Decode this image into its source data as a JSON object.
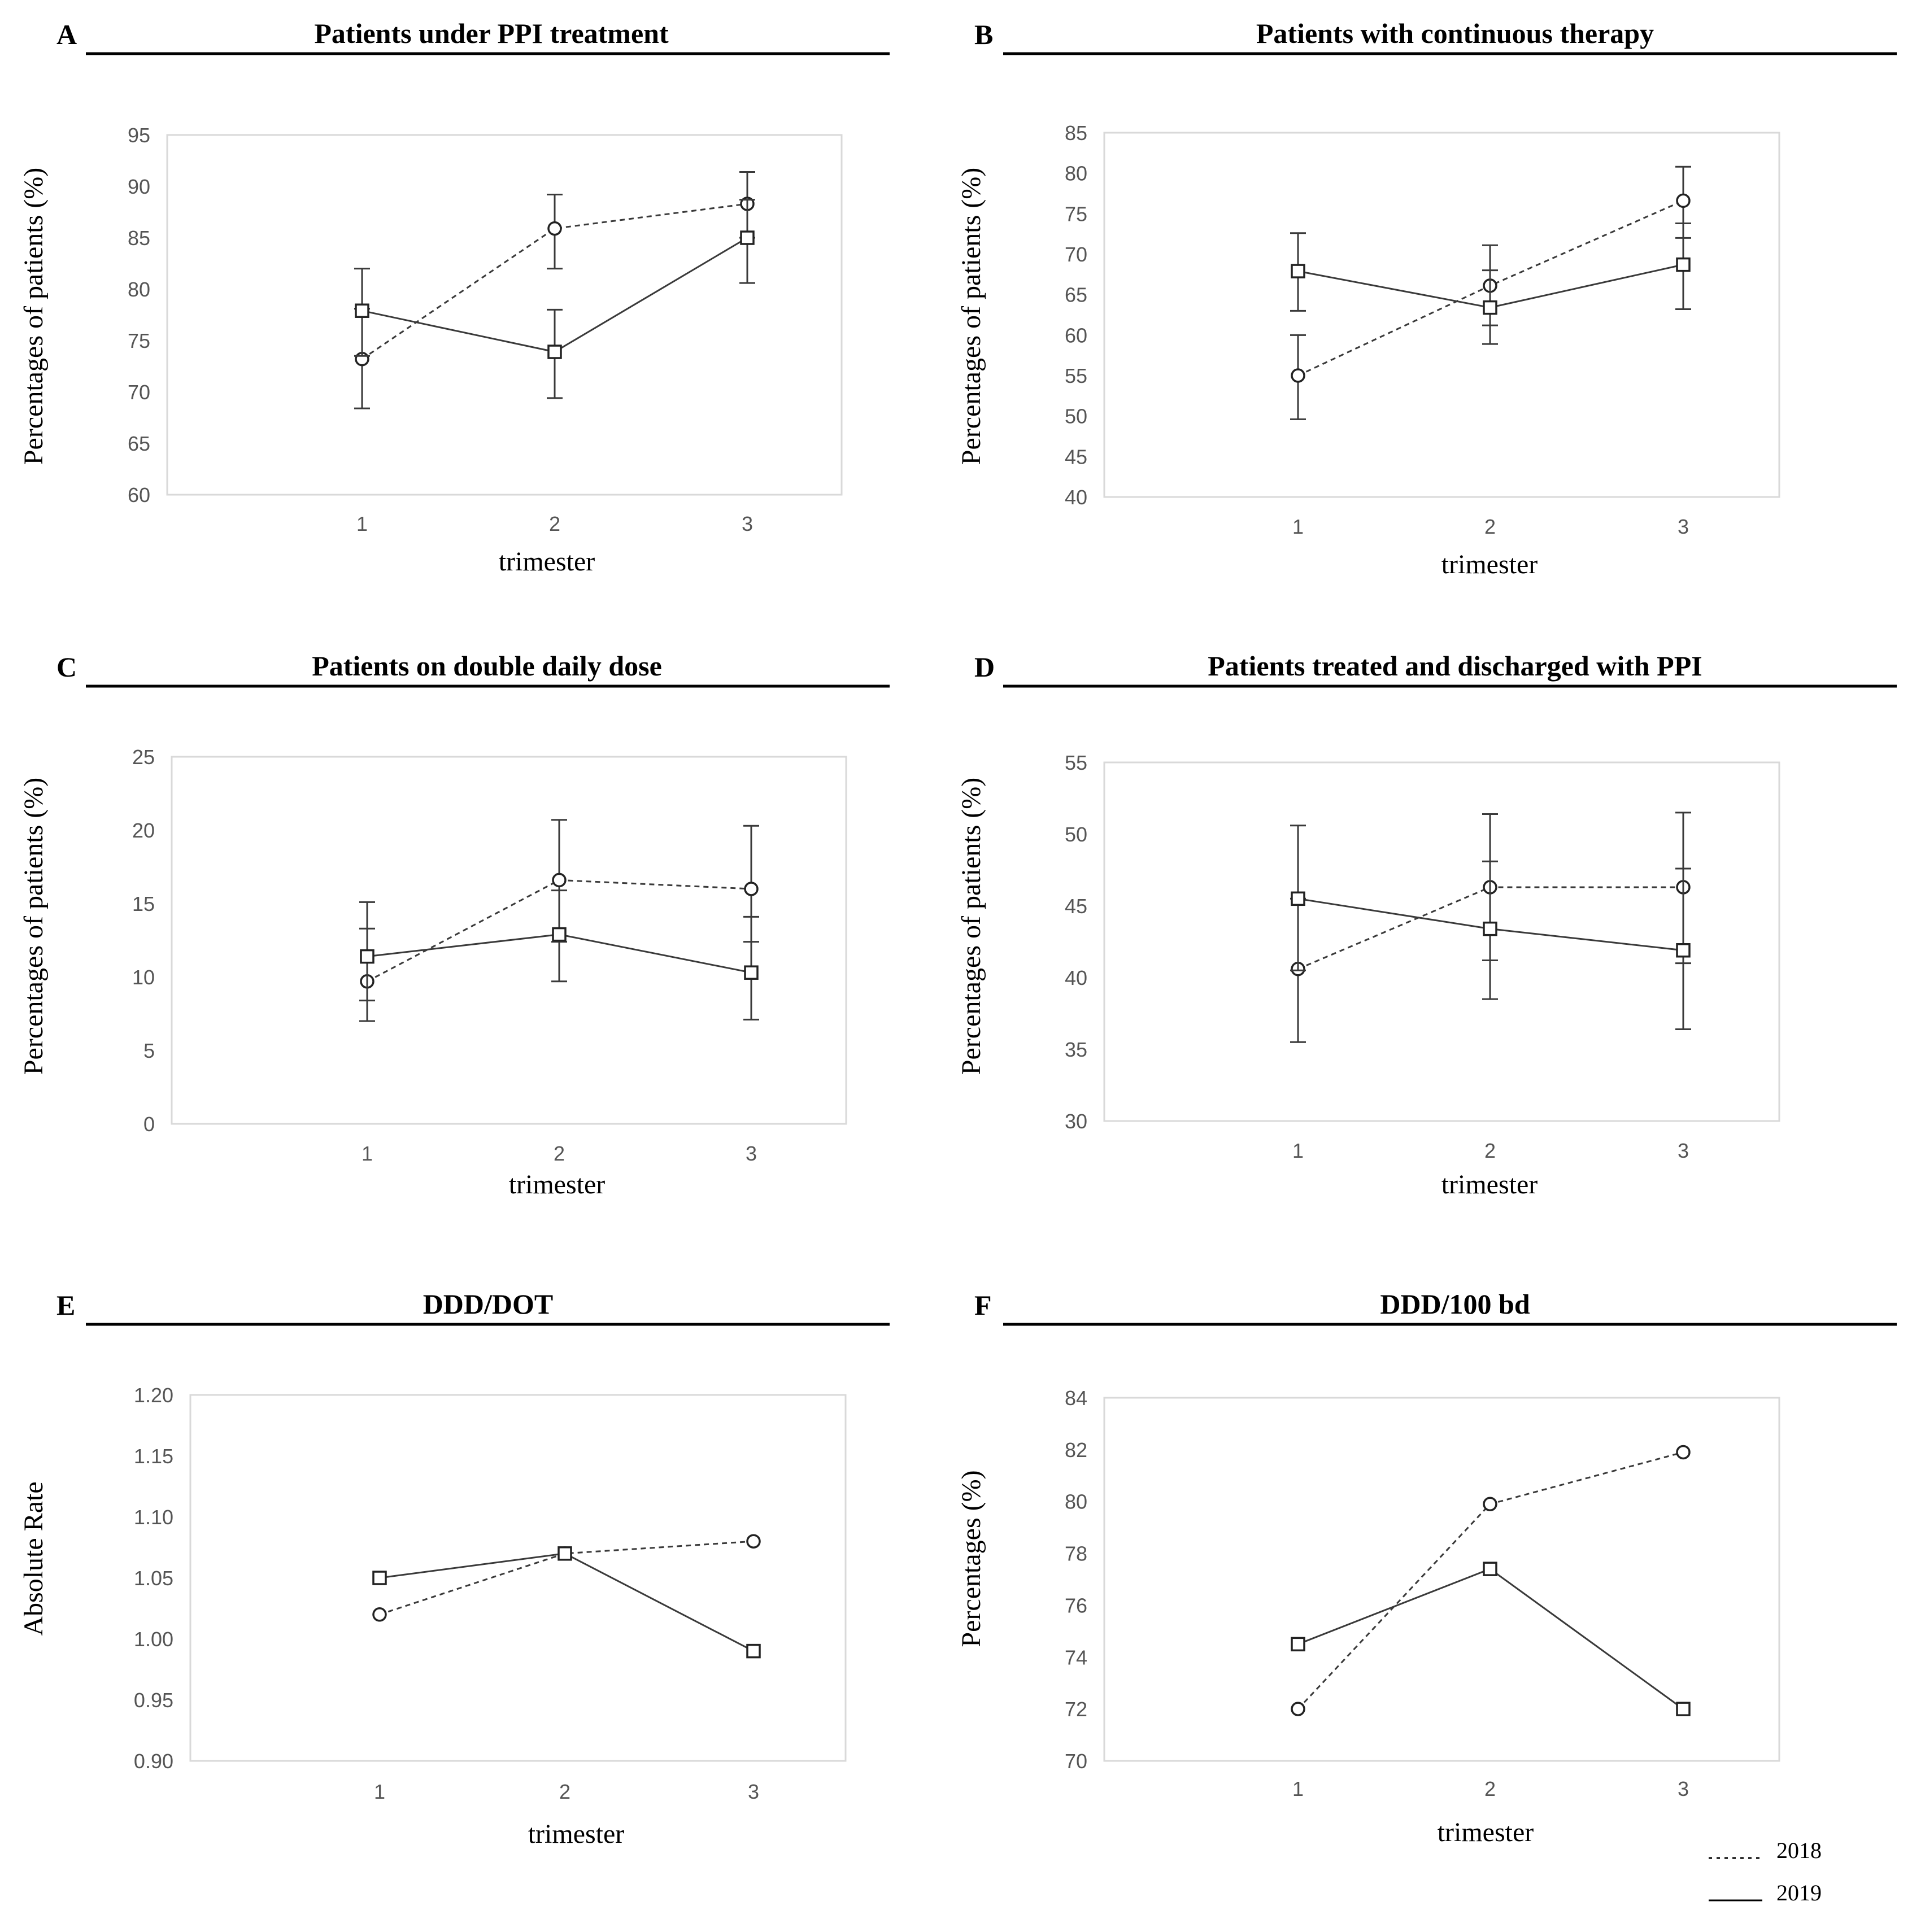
{
  "chart_data": [
    {
      "panel_letter": "A",
      "type": "line",
      "title": "Patients under PPI treatment",
      "xlabel": "trimester",
      "ylabel": "Percentages of patients (%)",
      "categories": [
        "1",
        "2",
        "3"
      ],
      "ylim": [
        60,
        95
      ],
      "yticks": [
        60,
        65,
        70,
        75,
        80,
        85,
        90,
        95
      ],
      "series": [
        {
          "name": "2018",
          "values": [
            73.2,
            85.9,
            88.3
          ],
          "err_low": [
            68.4,
            82.0,
            85.0
          ],
          "err_high": [
            78.1,
            89.2,
            91.4
          ]
        },
        {
          "name": "2019",
          "values": [
            77.9,
            73.9,
            85.0
          ],
          "err_low": [
            73.5,
            69.4,
            80.6
          ],
          "err_high": [
            82.0,
            78.0,
            88.7
          ]
        }
      ]
    },
    {
      "panel_letter": "B",
      "type": "line",
      "title": "Patients with continuous therapy",
      "xlabel": "trimester",
      "ylabel": "Percentages of patients (%)",
      "categories": [
        "1",
        "2",
        "3"
      ],
      "ylim": [
        40,
        85
      ],
      "yticks": [
        40,
        45,
        50,
        55,
        60,
        65,
        70,
        75,
        80,
        85
      ],
      "series": [
        {
          "name": "2018",
          "values": [
            55.0,
            66.1,
            76.6
          ],
          "err_low": [
            49.6,
            61.2,
            72.0
          ],
          "err_high": [
            60.0,
            71.1,
            80.8
          ]
        },
        {
          "name": "2019",
          "values": [
            67.9,
            63.4,
            68.7
          ],
          "err_low": [
            63.0,
            58.9,
            63.2
          ],
          "err_high": [
            72.6,
            68.0,
            73.8
          ]
        }
      ]
    },
    {
      "panel_letter": "C",
      "type": "line",
      "title": "Patients on double daily dose",
      "xlabel": "trimester",
      "ylabel": "Percentages of patients (%)",
      "categories": [
        "1",
        "2",
        "3"
      ],
      "ylim": [
        0,
        25
      ],
      "yticks": [
        0,
        5,
        10,
        15,
        20,
        25
      ],
      "series": [
        {
          "name": "2018",
          "values": [
            9.7,
            16.6,
            16.0
          ],
          "err_low": [
            7.0,
            12.4,
            12.4
          ],
          "err_high": [
            13.3,
            20.7,
            20.3
          ]
        },
        {
          "name": "2019",
          "values": [
            11.4,
            12.9,
            10.3
          ],
          "err_low": [
            8.4,
            9.7,
            7.1
          ],
          "err_high": [
            15.1,
            15.9,
            14.1
          ]
        }
      ]
    },
    {
      "panel_letter": "D",
      "type": "line",
      "title": "Patients treated and discharged with PPI",
      "xlabel": "trimester",
      "ylabel": "Percentages of patients (%)",
      "categories": [
        "1",
        "2",
        "3"
      ],
      "ylim": [
        30,
        55
      ],
      "yticks": [
        30,
        35,
        40,
        45,
        50,
        55
      ],
      "series": [
        {
          "name": "2018",
          "values": [
            40.6,
            46.3,
            46.3
          ],
          "err_low": [
            35.5,
            41.2,
            41.0
          ],
          "err_high": [
            45.5,
            51.4,
            51.5
          ]
        },
        {
          "name": "2019",
          "values": [
            45.5,
            43.4,
            41.9
          ],
          "err_low": [
            40.5,
            38.5,
            36.4
          ],
          "err_high": [
            50.6,
            48.1,
            47.6
          ]
        }
      ]
    },
    {
      "panel_letter": "E",
      "type": "line",
      "title": "DDD/DOT",
      "xlabel": "trimester",
      "ylabel": "Absolute Rate",
      "categories": [
        "1",
        "2",
        "3"
      ],
      "ylim": [
        0.9,
        1.2
      ],
      "yticks": [
        "0.90",
        "0.95",
        "1.00",
        "1.05",
        "1.10",
        "1.15",
        "1.20"
      ],
      "series": [
        {
          "name": "2018",
          "values": [
            1.02,
            1.07,
            1.08
          ]
        },
        {
          "name": "2019",
          "values": [
            1.05,
            1.07,
            0.99
          ]
        }
      ]
    },
    {
      "panel_letter": "F",
      "type": "line",
      "title": "DDD/100 bd",
      "xlabel": "trimester",
      "ylabel": "Percentages (%)",
      "categories": [
        "1",
        "2",
        "3"
      ],
      "ylim": [
        70,
        84
      ],
      "yticks": [
        70,
        72,
        74,
        76,
        78,
        80,
        82,
        84
      ],
      "series": [
        {
          "name": "2018",
          "values": [
            72.0,
            79.9,
            81.9
          ]
        },
        {
          "name": "2019",
          "values": [
            74.5,
            77.4,
            72.0
          ]
        }
      ]
    }
  ],
  "legend": {
    "position": "bottom-right",
    "entries": [
      {
        "label": "2018",
        "line_style": "dotted"
      },
      {
        "label": "2019",
        "line_style": "solid"
      }
    ]
  },
  "colors": {
    "line": "#3a3a3a",
    "text": "#000000",
    "tick_text": "#555555",
    "plot_border": "#d9d9d9",
    "marker_fill": "#ffffff"
  }
}
